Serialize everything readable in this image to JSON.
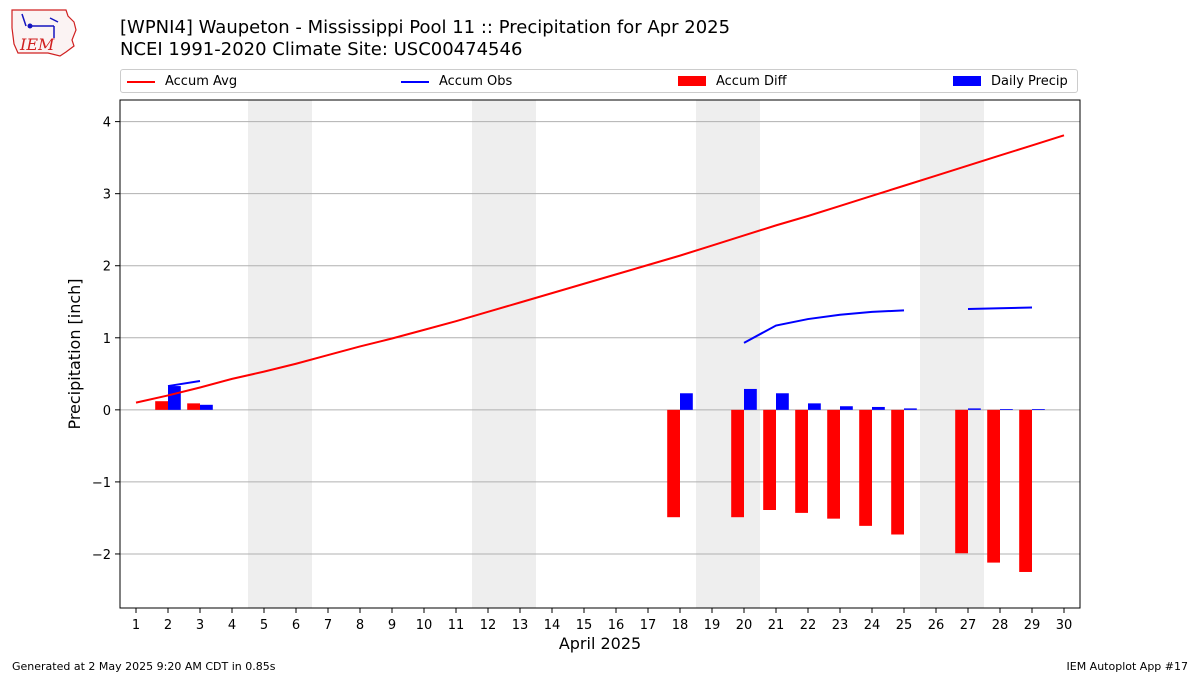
{
  "title_line1": "[WPNI4] Waupeton - Mississippi Pool 11 :: Precipitation for Apr 2025",
  "title_line2": "NCEI 1991-2020 Climate Site: USC00474546",
  "logo_text": "IEM",
  "footer_left": "Generated at 2 May 2025 9:20 AM CDT in 0.85s",
  "footer_right": "IEM Autoplot App #17",
  "colors": {
    "avg": "#ff0000",
    "obs": "#0000ff",
    "diff": "#ff0000",
    "daily": "#0000ff",
    "weekend": "#eeeeee",
    "grid": "#b0b0b0"
  },
  "legend": [
    {
      "label": "Accum Avg",
      "kind": "line",
      "color": "#ff0000"
    },
    {
      "label": "Accum Obs",
      "kind": "line",
      "color": "#0000ff"
    },
    {
      "label": "Accum Diff",
      "kind": "patch",
      "color": "#ff0000"
    },
    {
      "label": "Daily Precip",
      "kind": "patch",
      "color": "#0000ff"
    }
  ],
  "chart_data": {
    "type": "bar",
    "xlabel": "April 2025",
    "ylabel": "Precipitation [inch]",
    "xlim": [
      0.5,
      30.5
    ],
    "ylim": [
      -2.75,
      4.3
    ],
    "yticks": [
      -2,
      -1,
      0,
      1,
      2,
      3,
      4
    ],
    "ytick_labels": [
      "−2",
      "−1",
      "0",
      "1",
      "2",
      "3",
      "4"
    ],
    "xticks": [
      1,
      2,
      3,
      4,
      5,
      6,
      7,
      8,
      9,
      10,
      11,
      12,
      13,
      14,
      15,
      16,
      17,
      18,
      19,
      20,
      21,
      22,
      23,
      24,
      25,
      26,
      27,
      28,
      29,
      30
    ],
    "grid": "horizontal",
    "weekend_spans": [
      [
        4.5,
        6.5
      ],
      [
        11.5,
        13.5
      ],
      [
        18.5,
        20.5
      ],
      [
        25.5,
        27.5
      ]
    ],
    "series": [
      {
        "name": "Accum Avg",
        "kind": "line",
        "x": [
          1,
          2,
          3,
          4,
          5,
          6,
          7,
          8,
          9,
          10,
          11,
          12,
          13,
          14,
          15,
          16,
          17,
          18,
          19,
          20,
          21,
          22,
          23,
          24,
          25,
          26,
          27,
          28,
          29,
          30
        ],
        "y": [
          0.1,
          0.2,
          0.31,
          0.43,
          0.53,
          0.64,
          0.76,
          0.88,
          0.99,
          1.11,
          1.23,
          1.36,
          1.49,
          1.62,
          1.75,
          1.88,
          2.01,
          2.14,
          2.28,
          2.42,
          2.56,
          2.69,
          2.83,
          2.97,
          3.11,
          3.25,
          3.39,
          3.53,
          3.67,
          3.81
        ]
      },
      {
        "name": "Accum Obs",
        "kind": "line",
        "segments": [
          {
            "x": [
              2,
              3
            ],
            "y": [
              0.33,
              0.4
            ]
          },
          {
            "x": [
              20,
              21,
              22,
              23,
              24,
              25
            ],
            "y": [
              0.93,
              1.17,
              1.26,
              1.32,
              1.36,
              1.38
            ]
          },
          {
            "x": [
              27,
              28,
              29
            ],
            "y": [
              1.4,
              1.41,
              1.42
            ]
          }
        ]
      },
      {
        "name": "Accum Diff",
        "kind": "bar",
        "offset": -0.2,
        "x": [
          2,
          3,
          18,
          20,
          21,
          22,
          23,
          24,
          25,
          27,
          28,
          29
        ],
        "y": [
          0.12,
          0.09,
          -1.49,
          -1.49,
          -1.39,
          -1.43,
          -1.51,
          -1.61,
          -1.73,
          -1.99,
          -2.12,
          -2.25
        ]
      },
      {
        "name": "Daily Precip",
        "kind": "bar",
        "offset": 0.2,
        "x": [
          2,
          3,
          18,
          20,
          21,
          22,
          23,
          24,
          25,
          27,
          28,
          29
        ],
        "y": [
          0.33,
          0.07,
          0.23,
          0.29,
          0.23,
          0.09,
          0.05,
          0.04,
          0.02,
          0.02,
          0.01,
          0.01
        ]
      }
    ]
  }
}
